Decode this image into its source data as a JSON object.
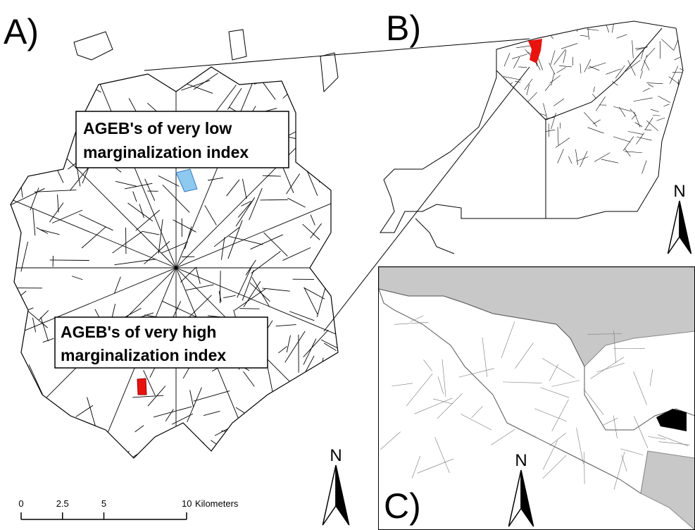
{
  "panel_a": {
    "label": "A)",
    "low_box": {
      "lines": [
        "AGEB's of very low",
        "marginalization index"
      ]
    },
    "high_box": {
      "lines": [
        "AGEB's of very high",
        "marginalization index"
      ]
    },
    "north": "N",
    "scale_bar": {
      "ticks": [
        0,
        2.5,
        5,
        10
      ],
      "unit": "Kilometers"
    }
  },
  "panel_b": {
    "label": "B)",
    "north": "N"
  },
  "panel_c": {
    "label": "C)",
    "north": "N"
  }
}
